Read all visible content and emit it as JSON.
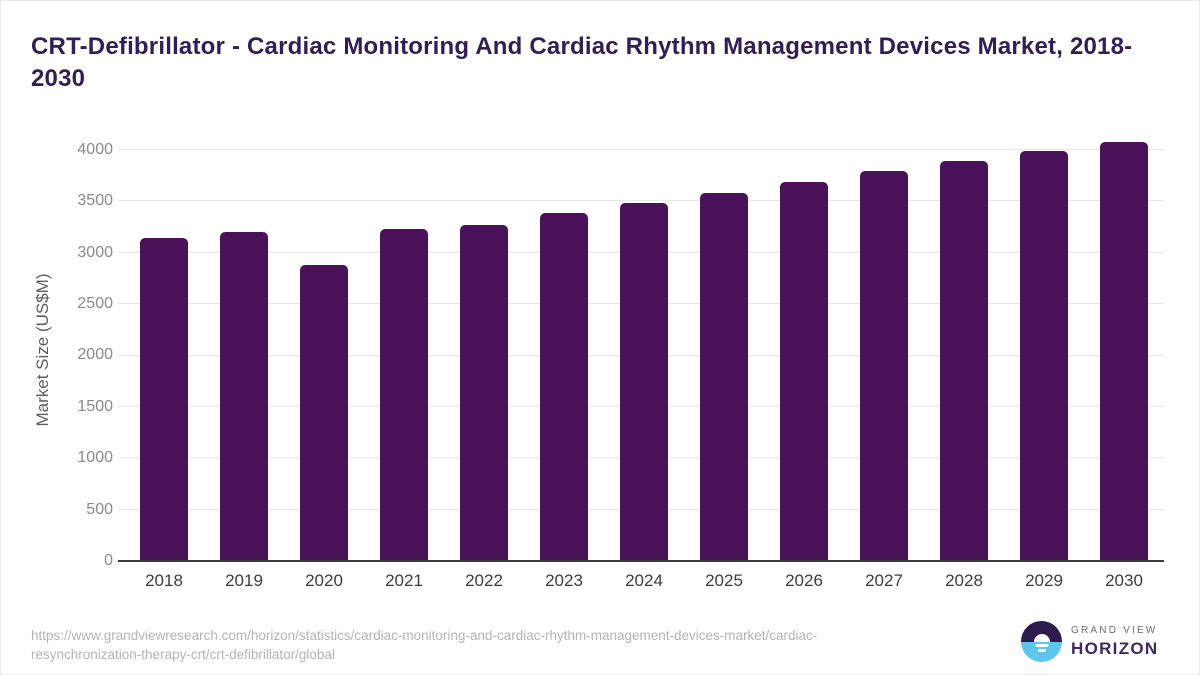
{
  "header": {
    "title": "CRT-Defibrillator - Cardiac Monitoring And Cardiac Rhythm Management Devices Market, 2018-2030"
  },
  "chart_data": {
    "type": "bar",
    "title": "CRT-Defibrillator - Cardiac Monitoring And Cardiac Rhythm Management Devices Market, 2018-2030",
    "categories": [
      "2018",
      "2019",
      "2020",
      "2021",
      "2022",
      "2023",
      "2024",
      "2025",
      "2026",
      "2027",
      "2028",
      "2029",
      "2030"
    ],
    "values": [
      3140,
      3200,
      2880,
      3235,
      3273,
      3387,
      3487,
      3584,
      3692,
      3795,
      3893,
      3990,
      4074
    ],
    "xlabel": "",
    "ylabel": "Market Size (US$M)",
    "ylim": [
      0,
      4000
    ],
    "yticks": [
      0,
      500,
      1000,
      1500,
      2000,
      2500,
      3000,
      3500,
      4000
    ],
    "grid": true,
    "legend_position": "none",
    "bar_color": "#4a1259",
    "gridline_color": "#e8e8e8",
    "axis_color": "#3a3a3a"
  },
  "footer": {
    "source_url_line1": "https://www.grandviewresearch.com/horizon/statistics/cardiac-monitoring-and-cardiac-rhythm-management-devices-market/cardiac-",
    "source_url_line2": "resynchronization-therapy-crt/crt-defibrillator/global",
    "logo": {
      "brand_top": "GRAND VIEW",
      "brand_bottom": "HORIZON",
      "icon": "horizon-sunset-icon",
      "icon_top_color": "#2d1b4e",
      "icon_bottom_color": "#5ec6ed"
    }
  }
}
